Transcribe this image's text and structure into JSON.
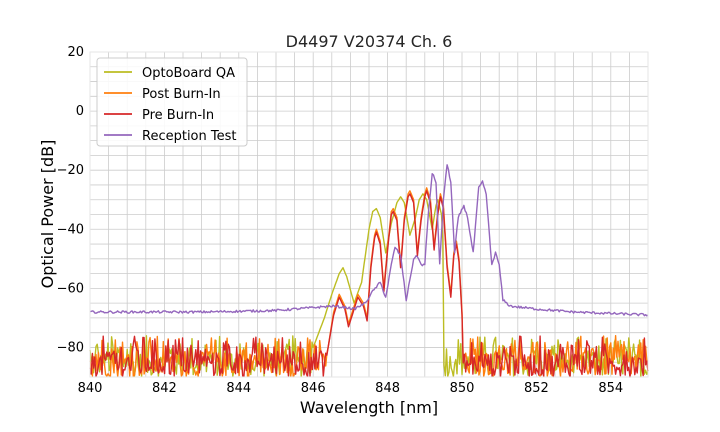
{
  "chart_data": {
    "type": "line",
    "title": "D4497 V20374 Ch. 6",
    "xlabel": "Wavelength [nm]",
    "ylabel": "Optical Power [dB]",
    "xlim": [
      840,
      855
    ],
    "ylim": [
      -90,
      20
    ],
    "xticks": [
      "840",
      "842",
      "844",
      "846",
      "848",
      "850",
      "852",
      "854"
    ],
    "yticks": [
      "20",
      "0",
      "−20",
      "−40",
      "−60",
      "−80"
    ],
    "grid": true,
    "legend_position": "top-left",
    "series": [
      {
        "name": "OptoBoard QA",
        "color": "#bcbd22",
        "noise_floor_range": [
          846.0,
          849.5
        ],
        "points": [
          [
            840.0,
            -88
          ],
          [
            846.0,
            -80
          ],
          [
            846.3,
            -70
          ],
          [
            846.5,
            -62
          ],
          [
            846.7,
            -55
          ],
          [
            846.8,
            -53
          ],
          [
            846.9,
            -56
          ],
          [
            847.1,
            -65
          ],
          [
            847.3,
            -58
          ],
          [
            847.5,
            -40
          ],
          [
            847.6,
            -34
          ],
          [
            847.7,
            -33
          ],
          [
            847.8,
            -36
          ],
          [
            847.95,
            -48
          ],
          [
            848.1,
            -38
          ],
          [
            848.25,
            -31
          ],
          [
            848.35,
            -29
          ],
          [
            848.45,
            -31
          ],
          [
            848.6,
            -42
          ],
          [
            848.75,
            -36
          ],
          [
            848.85,
            -30
          ],
          [
            848.95,
            -28
          ],
          [
            849.05,
            -30
          ],
          [
            849.2,
            -40
          ],
          [
            849.3,
            -32
          ],
          [
            849.35,
            -30
          ],
          [
            849.45,
            -35
          ],
          [
            849.55,
            -60
          ],
          [
            849.65,
            -76
          ],
          [
            849.8,
            -85
          ],
          [
            850.0,
            -88
          ],
          [
            855.0,
            -88
          ]
        ]
      },
      {
        "name": "Post Burn-In",
        "color": "#ff7f0e",
        "noise_floor_range": [
          846.4,
          850.0
        ],
        "points": [
          [
            840.0,
            -88
          ],
          [
            846.4,
            -80
          ],
          [
            846.55,
            -68
          ],
          [
            846.7,
            -62
          ],
          [
            846.85,
            -66
          ],
          [
            846.95,
            -72
          ],
          [
            847.05,
            -68
          ],
          [
            847.2,
            -62
          ],
          [
            847.35,
            -65
          ],
          [
            847.45,
            -70
          ],
          [
            847.55,
            -52
          ],
          [
            847.65,
            -42
          ],
          [
            847.7,
            -40
          ],
          [
            847.8,
            -44
          ],
          [
            847.9,
            -60
          ],
          [
            848.0,
            -46
          ],
          [
            848.1,
            -34
          ],
          [
            848.15,
            -33
          ],
          [
            848.25,
            -36
          ],
          [
            848.35,
            -52
          ],
          [
            848.45,
            -36
          ],
          [
            848.55,
            -28
          ],
          [
            848.6,
            -27
          ],
          [
            848.7,
            -30
          ],
          [
            848.8,
            -48
          ],
          [
            848.9,
            -36
          ],
          [
            849.0,
            -28
          ],
          [
            849.05,
            -26
          ],
          [
            849.15,
            -30
          ],
          [
            849.25,
            -46
          ],
          [
            849.35,
            -34
          ],
          [
            849.42,
            -28
          ],
          [
            849.5,
            -32
          ],
          [
            849.6,
            -52
          ],
          [
            849.7,
            -62
          ],
          [
            849.78,
            -48
          ],
          [
            849.85,
            -44
          ],
          [
            849.92,
            -50
          ],
          [
            850.0,
            -68
          ],
          [
            850.1,
            -80
          ],
          [
            855.0,
            -88
          ]
        ]
      },
      {
        "name": "Pre Burn-In",
        "color": "#d62728",
        "noise_floor_range": [
          846.4,
          850.0
        ],
        "points": [
          [
            840.0,
            -88
          ],
          [
            846.4,
            -80
          ],
          [
            846.55,
            -69
          ],
          [
            846.7,
            -63
          ],
          [
            846.85,
            -67
          ],
          [
            846.95,
            -73
          ],
          [
            847.05,
            -69
          ],
          [
            847.2,
            -63
          ],
          [
            847.35,
            -66
          ],
          [
            847.45,
            -71
          ],
          [
            847.55,
            -53
          ],
          [
            847.65,
            -43
          ],
          [
            847.7,
            -41
          ],
          [
            847.8,
            -45
          ],
          [
            847.9,
            -61
          ],
          [
            848.0,
            -47
          ],
          [
            848.1,
            -35
          ],
          [
            848.15,
            -34
          ],
          [
            848.25,
            -37
          ],
          [
            848.35,
            -53
          ],
          [
            848.45,
            -37
          ],
          [
            848.55,
            -29
          ],
          [
            848.6,
            -28
          ],
          [
            848.7,
            -31
          ],
          [
            848.8,
            -49
          ],
          [
            848.9,
            -37
          ],
          [
            849.0,
            -29
          ],
          [
            849.05,
            -27
          ],
          [
            849.15,
            -31
          ],
          [
            849.25,
            -47
          ],
          [
            849.35,
            -35
          ],
          [
            849.42,
            -29
          ],
          [
            849.5,
            -33
          ],
          [
            849.6,
            -53
          ],
          [
            849.7,
            -63
          ],
          [
            849.78,
            -49
          ],
          [
            849.85,
            -45
          ],
          [
            849.92,
            -51
          ],
          [
            850.0,
            -69
          ],
          [
            850.1,
            -81
          ],
          [
            855.0,
            -88
          ]
        ]
      },
      {
        "name": "Reception Test",
        "color": "#9467bd",
        "noise_floor_range": [
          0,
          0
        ],
        "points": [
          [
            840.0,
            -68
          ],
          [
            843.0,
            -68
          ],
          [
            845.0,
            -67.5
          ],
          [
            846.0,
            -66.5
          ],
          [
            846.5,
            -66
          ],
          [
            846.9,
            -66.5
          ],
          [
            847.1,
            -67
          ],
          [
            847.4,
            -65
          ],
          [
            847.6,
            -61
          ],
          [
            847.8,
            -58
          ],
          [
            847.95,
            -63
          ],
          [
            848.1,
            -52
          ],
          [
            848.2,
            -46
          ],
          [
            848.35,
            -49
          ],
          [
            848.5,
            -64
          ],
          [
            848.7,
            -50
          ],
          [
            848.8,
            -49
          ],
          [
            848.9,
            -52
          ],
          [
            849.0,
            -52
          ],
          [
            849.1,
            -34
          ],
          [
            849.2,
            -21
          ],
          [
            849.3,
            -24
          ],
          [
            849.4,
            -52
          ],
          [
            849.5,
            -30
          ],
          [
            849.6,
            -18
          ],
          [
            849.7,
            -24
          ],
          [
            849.8,
            -48
          ],
          [
            849.9,
            -36
          ],
          [
            850.05,
            -32
          ],
          [
            850.15,
            -36
          ],
          [
            850.3,
            -48
          ],
          [
            850.45,
            -26
          ],
          [
            850.55,
            -24
          ],
          [
            850.65,
            -28
          ],
          [
            850.8,
            -52
          ],
          [
            850.9,
            -48
          ],
          [
            851.0,
            -52
          ],
          [
            851.1,
            -64
          ],
          [
            851.3,
            -66
          ],
          [
            852.0,
            -67
          ],
          [
            853.0,
            -68
          ],
          [
            854.0,
            -68.5
          ],
          [
            855.0,
            -69
          ]
        ]
      }
    ]
  }
}
